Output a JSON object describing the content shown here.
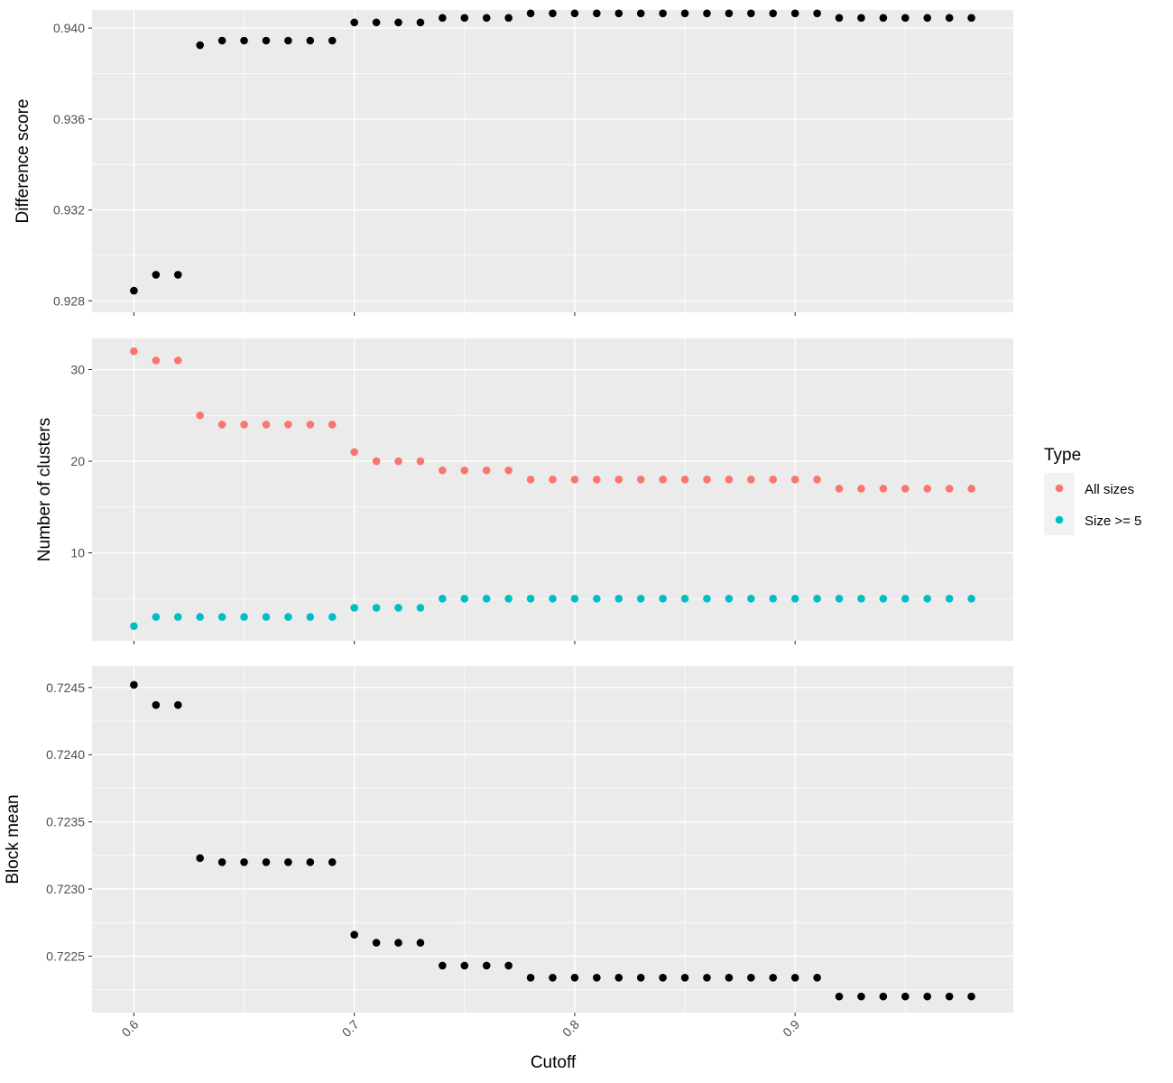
{
  "chart_data": {
    "type": "scatter",
    "x_title": "Cutoff",
    "x_ticks": [
      "0.6",
      "0.7",
      "0.8",
      "0.9"
    ],
    "x": [
      0.6,
      0.61,
      0.62,
      0.63,
      0.64,
      0.65,
      0.66,
      0.67,
      0.68,
      0.69,
      0.7,
      0.71,
      0.72,
      0.73,
      0.74,
      0.75,
      0.76,
      0.77,
      0.78,
      0.79,
      0.8,
      0.81,
      0.82,
      0.83,
      0.84,
      0.85,
      0.86,
      0.87,
      0.88,
      0.89,
      0.9,
      0.91,
      0.92,
      0.93,
      0.94,
      0.95,
      0.96,
      0.97,
      0.98
    ],
    "xlim": [
      0.581,
      0.999
    ],
    "panels": [
      {
        "ylabel": "Difference score",
        "ylim": [
          0.9275,
          0.9408
        ],
        "y_ticks": [
          "0.928",
          "0.932",
          "0.936",
          "0.940"
        ],
        "grid": true,
        "series": [
          {
            "color": "#000000",
            "values": [
              0.92845,
              0.92915,
              0.92915,
              0.93925,
              0.93945,
              0.93945,
              0.93945,
              0.93945,
              0.93945,
              0.93945,
              0.94025,
              0.94025,
              0.94025,
              0.94025,
              0.94045,
              0.94045,
              0.94045,
              0.94045,
              0.94065,
              0.94065,
              0.94065,
              0.94065,
              0.94065,
              0.94065,
              0.94065,
              0.94065,
              0.94065,
              0.94065,
              0.94065,
              0.94065,
              0.94065,
              0.94065,
              0.94045,
              0.94045,
              0.94045,
              0.94045,
              0.94045,
              0.94045,
              0.94045
            ]
          }
        ]
      },
      {
        "ylabel": "Number of clusters",
        "ylim": [
          0.4,
          33.4
        ],
        "y_ticks": [
          "10",
          "20",
          "30"
        ],
        "grid": true,
        "series": [
          {
            "name": "All sizes",
            "color": "#F8766D",
            "values": [
              32,
              31,
              31,
              25,
              24,
              24,
              24,
              24,
              24,
              24,
              21,
              20,
              20,
              20,
              19,
              19,
              19,
              19,
              18,
              18,
              18,
              18,
              18,
              18,
              18,
              18,
              18,
              18,
              18,
              18,
              18,
              18,
              17,
              17,
              17,
              17,
              17,
              17,
              17
            ]
          },
          {
            "name": "Size >= 5",
            "color": "#00BFC4",
            "values": [
              2,
              3,
              3,
              3,
              3,
              3,
              3,
              3,
              3,
              3,
              4,
              4,
              4,
              4,
              5,
              5,
              5,
              5,
              5,
              5,
              5,
              5,
              5,
              5,
              5,
              5,
              5,
              5,
              5,
              5,
              5,
              5,
              5,
              5,
              5,
              5,
              5,
              5,
              5
            ]
          }
        ]
      },
      {
        "ylabel": "Block mean",
        "ylim": [
          0.72208,
          0.72466
        ],
        "y_ticks": [
          "0.7225",
          "0.7230",
          "0.7235",
          "0.7240",
          "0.7245"
        ],
        "grid": true,
        "series": [
          {
            "color": "#000000",
            "values": [
              0.72452,
              0.72437,
              0.72437,
              0.72323,
              0.7232,
              0.7232,
              0.7232,
              0.7232,
              0.7232,
              0.7232,
              0.72266,
              0.7226,
              0.7226,
              0.7226,
              0.72243,
              0.72243,
              0.72243,
              0.72243,
              0.72234,
              0.72234,
              0.72234,
              0.72234,
              0.72234,
              0.72234,
              0.72234,
              0.72234,
              0.72234,
              0.72234,
              0.72234,
              0.72234,
              0.72234,
              0.72234,
              0.7222,
              0.7222,
              0.7222,
              0.7222,
              0.7222,
              0.7222,
              0.7222
            ]
          }
        ]
      }
    ],
    "legend": {
      "title": "Type",
      "placement": "right",
      "entries": [
        {
          "label": "All sizes",
          "color": "#F8766D"
        },
        {
          "label": "Size >= 5",
          "color": "#00BFC4"
        }
      ]
    },
    "colors": {
      "panel_bg": "#EBEBEB",
      "grid": "#FFFFFF",
      "tick_text": "#4D4D4D",
      "tick_mark": "#333333"
    }
  }
}
